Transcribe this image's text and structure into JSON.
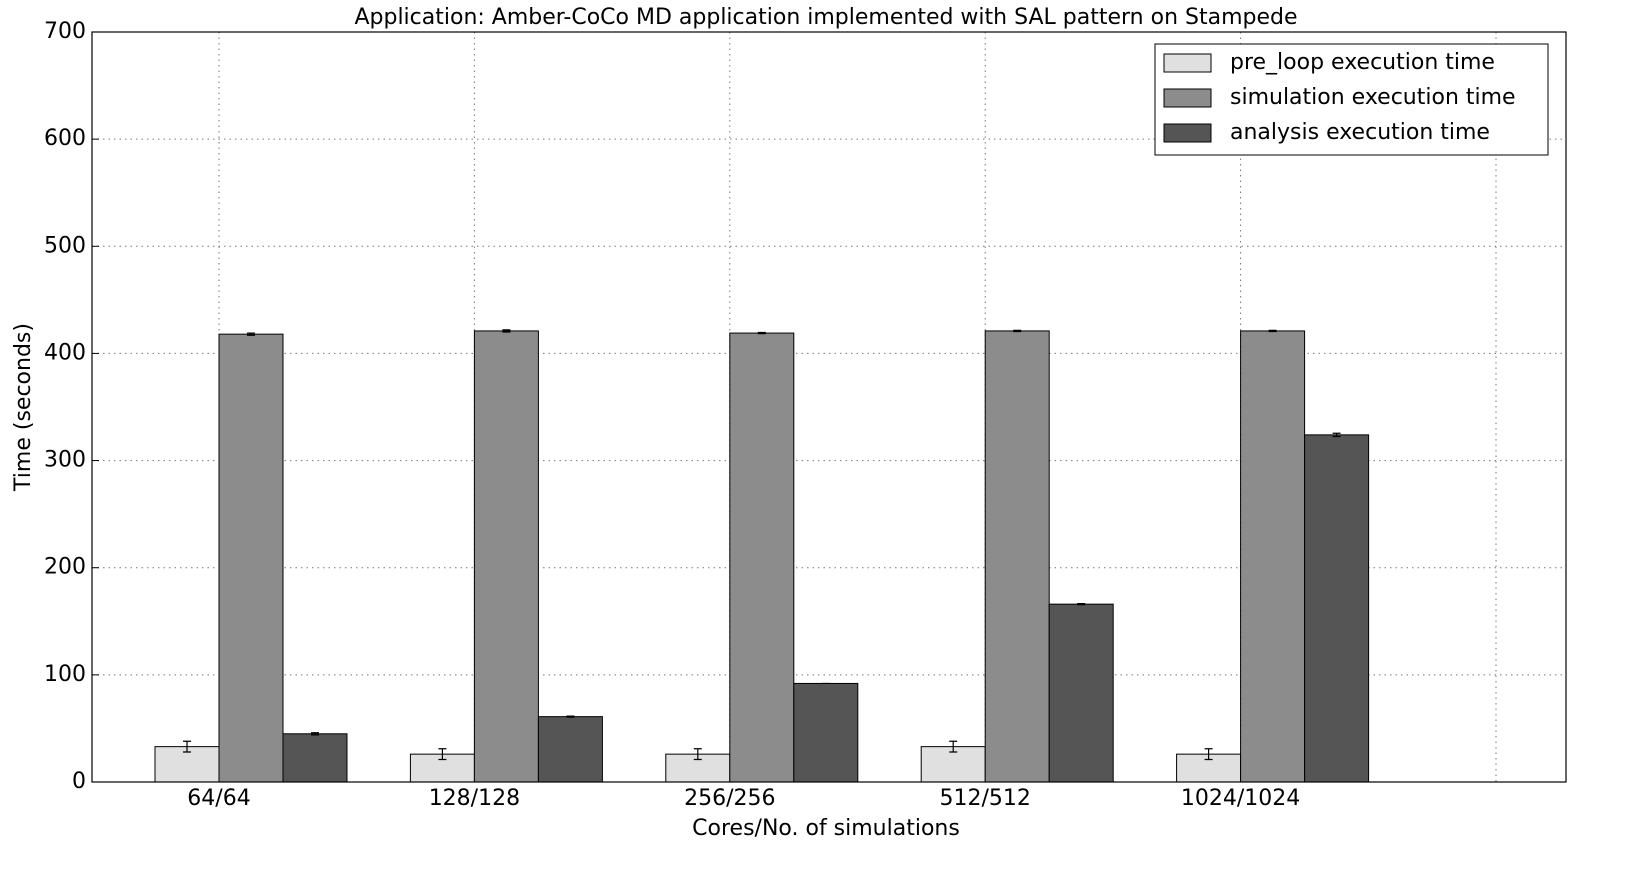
{
  "chart_data": {
    "type": "bar",
    "title": "Application: Amber-CoCo MD application implemented with SAL pattern on Stampede",
    "x_label": "Cores/No. of simulations",
    "y_label": "Time (seconds)",
    "categories": [
      "64/64",
      "128/128",
      "256/256",
      "512/512",
      "1024/1024",
      null
    ],
    "series": [
      {
        "name": "pre_loop execution time",
        "color": "#e0e0e0",
        "values": [
          33,
          26,
          26,
          33,
          26,
          null
        ],
        "errors": [
          5,
          5,
          5,
          5,
          5,
          null
        ]
      },
      {
        "name": "simulation execution time",
        "color": "#8c8c8c",
        "values": [
          418,
          421,
          419,
          421,
          421,
          null
        ],
        "errors": [
          1,
          1,
          0.5,
          0.5,
          0.5,
          null
        ]
      },
      {
        "name": "analysis execution time",
        "color": "#555555",
        "values": [
          45,
          61,
          92,
          166,
          324,
          null
        ],
        "errors": [
          1,
          0.5,
          0,
          0.5,
          1.5,
          null
        ]
      }
    ],
    "ylim": [
      0,
      700
    ],
    "yticks": [
      0,
      100,
      200,
      300,
      400,
      500,
      600,
      700
    ],
    "grid": true,
    "legend": "upper right"
  }
}
